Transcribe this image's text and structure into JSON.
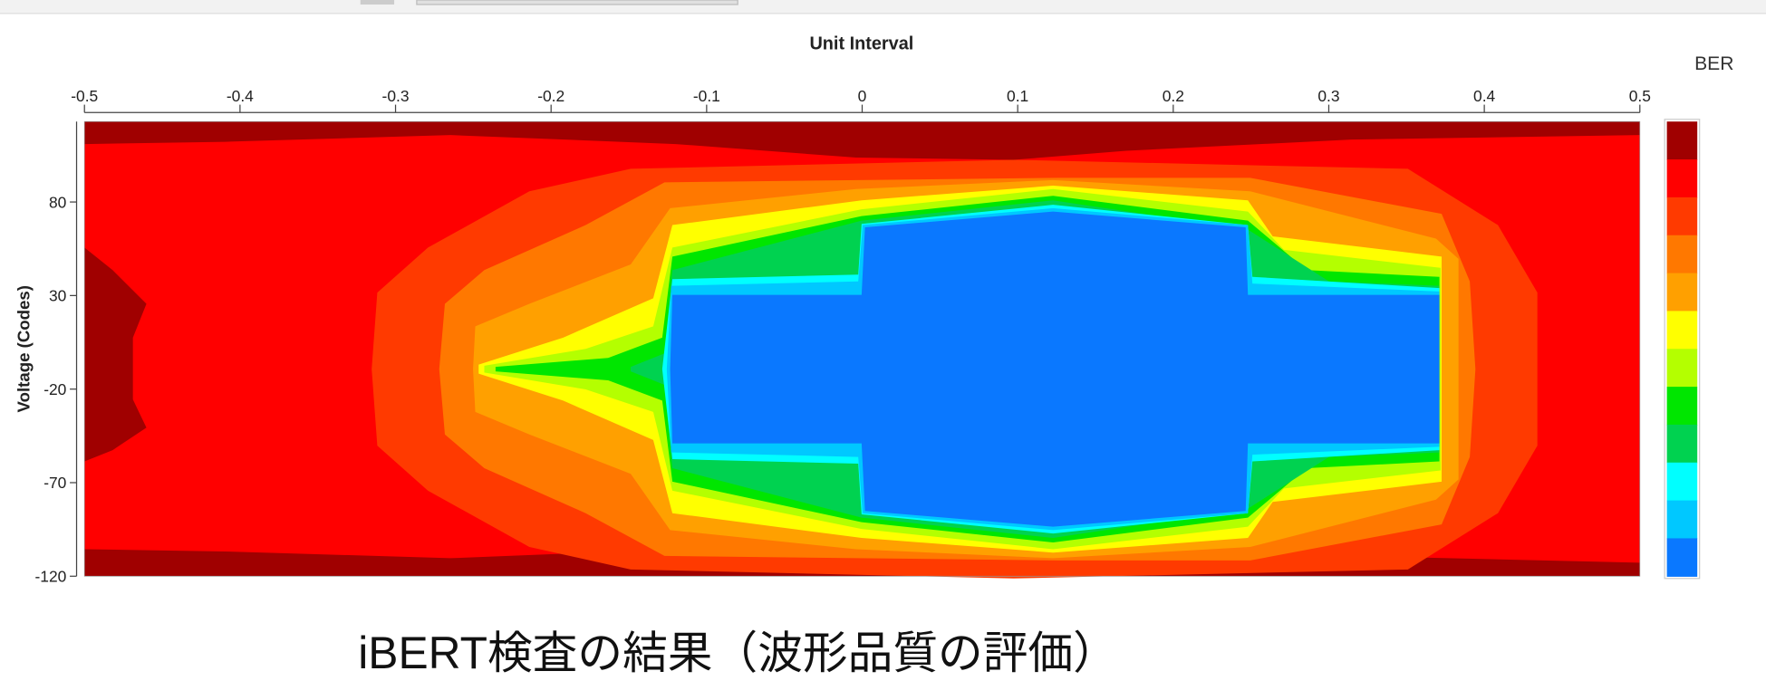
{
  "chart_data": {
    "type": "contour",
    "title": "Unit Interval",
    "y_label": "Voltage (Codes)",
    "colorbar_label": "BER",
    "xlim": [
      -0.5,
      0.5
    ],
    "xticks": [
      -0.5,
      -0.4,
      -0.3,
      -0.2,
      -0.1,
      0,
      0.1,
      0.2,
      0.3,
      0.4,
      0.5
    ],
    "ylim": [
      -120,
      123
    ],
    "yticks": [
      -120,
      -70,
      -20,
      30,
      80
    ],
    "colorbar_colors": [
      "#a00000",
      "#ff0000",
      "#ff3a00",
      "#ff7800",
      "#ffa000",
      "#ffff00",
      "#b4ff00",
      "#00e600",
      "#00d250",
      "#00ffff",
      "#00c8ff",
      "#0a78ff"
    ]
  },
  "caption": "iBERT検査の結果（波形品質の評価）"
}
